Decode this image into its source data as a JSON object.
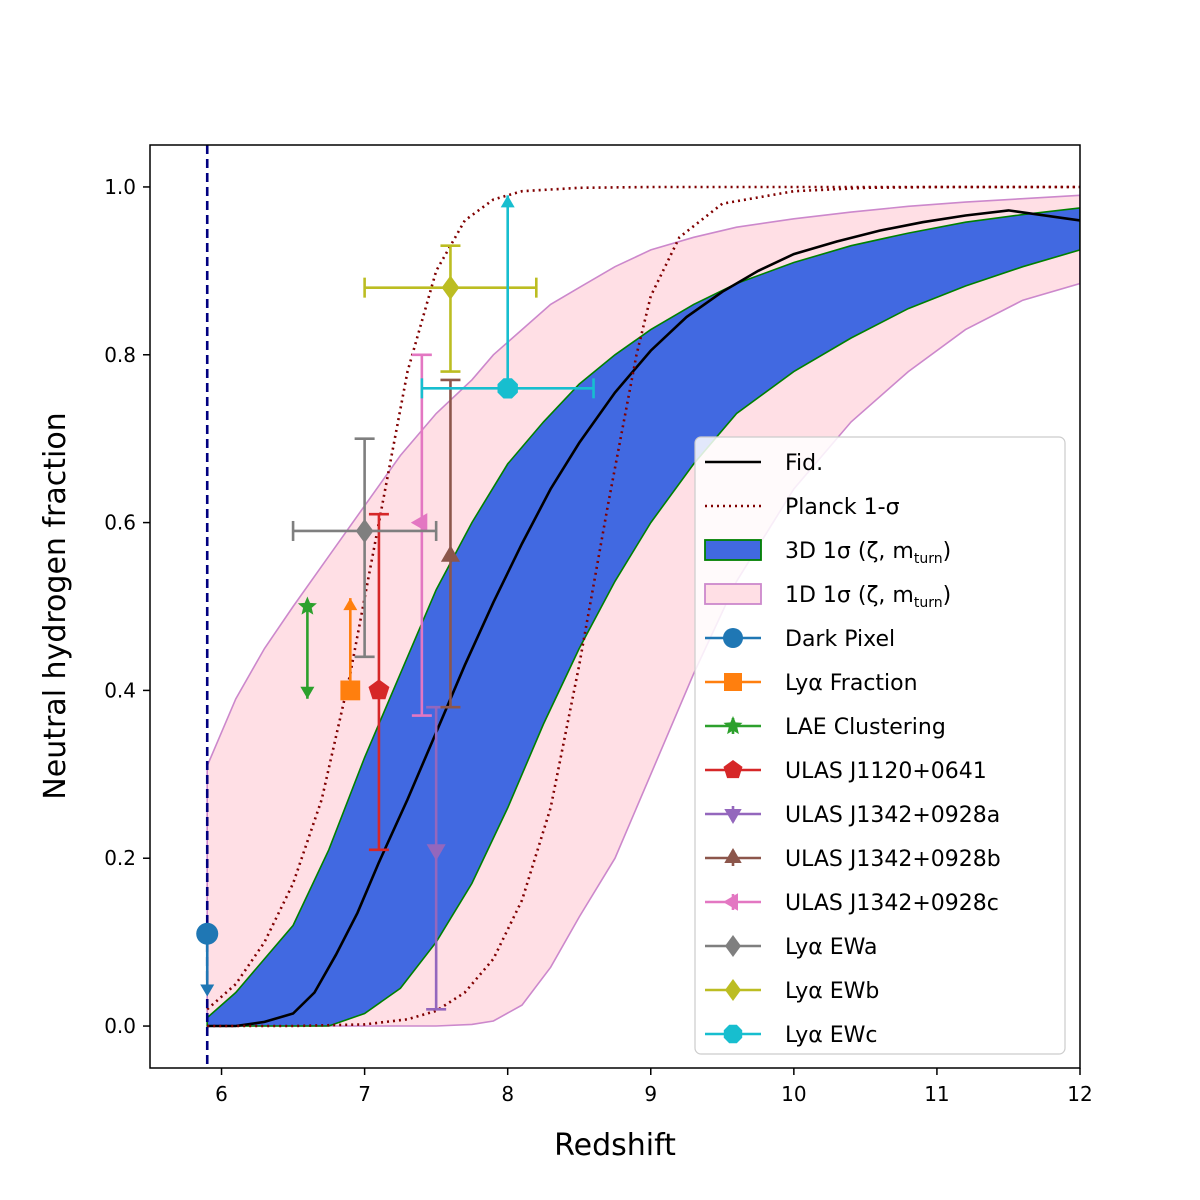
{
  "chart_data": {
    "type": "line",
    "xlabel": "Redshift",
    "ylabel": "Neutral hydrogen fraction",
    "xlim": [
      5.5,
      12
    ],
    "ylim": [
      -0.05,
      1.05
    ],
    "xticks": [
      {
        "value": 6,
        "label": "6"
      },
      {
        "value": 7,
        "label": "7"
      },
      {
        "value": 8,
        "label": "8"
      },
      {
        "value": 9,
        "label": "9"
      },
      {
        "value": 10,
        "label": "10"
      },
      {
        "value": 11,
        "label": "11"
      },
      {
        "value": 12,
        "label": "12"
      }
    ],
    "yticks": [
      {
        "value": 0.0,
        "label": "0.0"
      },
      {
        "value": 0.2,
        "label": "0.2"
      },
      {
        "value": 0.4,
        "label": "0.4"
      },
      {
        "value": 0.6,
        "label": "0.6"
      },
      {
        "value": 0.8,
        "label": "0.8"
      },
      {
        "value": 1.0,
        "label": "1.0"
      }
    ],
    "grid": false,
    "vline": {
      "x": 5.9,
      "color": "#000080",
      "style": "dashed"
    },
    "fiducial": {
      "name": "Fid.",
      "color": "#000000",
      "x": [
        5.9,
        6.1,
        6.3,
        6.5,
        6.65,
        6.8,
        6.95,
        7.1,
        7.3,
        7.5,
        7.7,
        7.9,
        8.1,
        8.3,
        8.5,
        8.75,
        9.0,
        9.25,
        9.5,
        9.75,
        10.0,
        10.3,
        10.6,
        10.9,
        11.2,
        11.5,
        12.0
      ],
      "y": [
        0.0,
        0.0,
        0.005,
        0.015,
        0.04,
        0.085,
        0.135,
        0.195,
        0.27,
        0.35,
        0.43,
        0.505,
        0.575,
        0.64,
        0.695,
        0.755,
        0.805,
        0.845,
        0.875,
        0.9,
        0.92,
        0.935,
        0.948,
        0.958,
        0.966,
        0.972,
        0.96
      ]
    },
    "planck": {
      "name": "Planck 1-σ",
      "color": "#800000",
      "lower": {
        "x": [
          5.9,
          6.5,
          7.0,
          7.3,
          7.5,
          7.7,
          7.9,
          8.1,
          8.3,
          8.5,
          8.7,
          8.9,
          9.0,
          9.2,
          9.5,
          10.0,
          10.5,
          11.0,
          12.0
        ],
        "y": [
          0.0,
          0.0,
          0.002,
          0.008,
          0.018,
          0.04,
          0.08,
          0.15,
          0.26,
          0.43,
          0.62,
          0.8,
          0.87,
          0.94,
          0.98,
          0.995,
          0.999,
          1.0,
          1.0
        ]
      },
      "upper": {
        "x": [
          5.9,
          6.1,
          6.3,
          6.5,
          6.7,
          6.9,
          7.1,
          7.3,
          7.5,
          7.7,
          7.9,
          8.1,
          8.5,
          9.0,
          10.0,
          12.0
        ],
        "y": [
          0.02,
          0.05,
          0.1,
          0.17,
          0.27,
          0.42,
          0.6,
          0.78,
          0.9,
          0.96,
          0.985,
          0.995,
          0.999,
          1.0,
          1.0,
          1.0
        ]
      }
    },
    "band_3d": {
      "name": "3D 1σ (ζ, m_turn)",
      "fill": "#4169e1",
      "edge": "#008000",
      "x": [
        5.9,
        6.1,
        6.3,
        6.5,
        6.75,
        7.0,
        7.25,
        7.5,
        7.75,
        8.0,
        8.25,
        8.5,
        8.75,
        9.0,
        9.3,
        9.6,
        10.0,
        10.4,
        10.8,
        11.2,
        11.6,
        12.0
      ],
      "upper": [
        0.01,
        0.04,
        0.08,
        0.12,
        0.21,
        0.32,
        0.42,
        0.52,
        0.6,
        0.67,
        0.72,
        0.765,
        0.8,
        0.83,
        0.86,
        0.885,
        0.91,
        0.93,
        0.945,
        0.958,
        0.967,
        0.975
      ],
      "lower": [
        0.0,
        0.0,
        0.0,
        0.0,
        0.0,
        0.015,
        0.045,
        0.1,
        0.17,
        0.26,
        0.36,
        0.45,
        0.53,
        0.6,
        0.67,
        0.73,
        0.78,
        0.82,
        0.855,
        0.882,
        0.905,
        0.925
      ]
    },
    "band_1d": {
      "name": "1D 1σ (ζ, m_turn)",
      "fill": "#ffdfe5",
      "edge": "#cc88cc",
      "x": [
        5.9,
        6.1,
        6.3,
        6.5,
        6.75,
        7.0,
        7.25,
        7.5,
        7.75,
        7.9,
        8.1,
        8.3,
        8.5,
        8.75,
        9.0,
        9.3,
        9.6,
        10.0,
        10.4,
        10.8,
        11.2,
        11.6,
        12.0
      ],
      "upper": [
        0.31,
        0.39,
        0.45,
        0.5,
        0.56,
        0.62,
        0.68,
        0.73,
        0.77,
        0.8,
        0.83,
        0.86,
        0.88,
        0.905,
        0.925,
        0.94,
        0.952,
        0.962,
        0.97,
        0.977,
        0.982,
        0.986,
        0.99
      ],
      "lower": [
        0.0,
        0.0,
        0.0,
        0.0,
        0.0,
        0.0,
        0.0,
        0.0,
        0.002,
        0.006,
        0.025,
        0.07,
        0.13,
        0.2,
        0.3,
        0.42,
        0.53,
        0.64,
        0.72,
        0.78,
        0.83,
        0.865,
        0.885
      ]
    },
    "points": [
      {
        "name": "Dark Pixel",
        "color": "#1f77b4",
        "marker": "circle",
        "x": 5.9,
        "y": 0.11,
        "upper_limit": 0.04
      },
      {
        "name": "Lyα Fraction",
        "color": "#ff7f0e",
        "marker": "square",
        "x": 6.9,
        "y": 0.4,
        "lower_limit_to": 0.51
      },
      {
        "name": "LAE Clustering",
        "color": "#2ca02c",
        "marker": "star",
        "x": 6.6,
        "y": 0.5,
        "range_to": 0.39
      },
      {
        "name": "ULAS J1120+0641",
        "color": "#d62728",
        "marker": "pentagon",
        "x": 7.1,
        "y": 0.4,
        "yerr": [
          0.21,
          0.61
        ]
      },
      {
        "name": "ULAS J1342+0928a",
        "color": "#9467bd",
        "marker": "triangle-down",
        "x": 7.5,
        "y": 0.21,
        "yerr": [
          0.02,
          0.38
        ]
      },
      {
        "name": "ULAS J1342+0928b",
        "color": "#8c564b",
        "marker": "triangle-up",
        "x": 7.6,
        "y": 0.56,
        "yerr": [
          0.38,
          0.77
        ]
      },
      {
        "name": "ULAS J1342+0928c",
        "color": "#e377c2",
        "marker": "triangle-left",
        "x": 7.4,
        "y": 0.6,
        "yerr": [
          0.37,
          0.8
        ]
      },
      {
        "name": "Lyα EWa",
        "color": "#7f7f7f",
        "marker": "diamond",
        "x": 7.0,
        "y": 0.59,
        "yerr": [
          0.44,
          0.7
        ],
        "xerr": [
          6.5,
          7.5
        ]
      },
      {
        "name": "Lyα EWb",
        "color": "#bcbd22",
        "marker": "diamond",
        "x": 7.6,
        "y": 0.88,
        "yerr": [
          0.78,
          0.93
        ],
        "xerr": [
          7.0,
          8.2
        ]
      },
      {
        "name": "Lyα EWc",
        "color": "#17becf",
        "marker": "octagon",
        "x": 8.0,
        "y": 0.76,
        "xerr": [
          7.4,
          8.6
        ],
        "lower_limit_to": 0.99
      }
    ]
  },
  "legend": {
    "placement": "lower-right",
    "entries": [
      {
        "label": "Fid.",
        "kind": "line",
        "color": "#000000"
      },
      {
        "label": "Planck 1-σ",
        "kind": "dotted",
        "color": "#800000"
      },
      {
        "label": "3D 1σ (ζ, m",
        "sub": "turn",
        "tail": ")",
        "kind": "patch",
        "fill": "#4169e1",
        "edge": "#008000"
      },
      {
        "label": "1D 1σ (ζ, m",
        "sub": "turn",
        "tail": ")",
        "kind": "patch",
        "fill": "#ffdfe5",
        "edge": "#cc88cc"
      },
      {
        "label": "Dark Pixel",
        "kind": "marker",
        "color": "#1f77b4",
        "marker": "circle"
      },
      {
        "label": "Lyα Fraction",
        "kind": "marker",
        "color": "#ff7f0e",
        "marker": "square"
      },
      {
        "label": "LAE Clustering",
        "kind": "marker",
        "color": "#2ca02c",
        "marker": "star"
      },
      {
        "label": "ULAS J1120+0641",
        "kind": "marker",
        "color": "#d62728",
        "marker": "pentagon"
      },
      {
        "label": "ULAS J1342+0928a",
        "kind": "marker",
        "color": "#9467bd",
        "marker": "triangle-down"
      },
      {
        "label": "ULAS J1342+0928b",
        "kind": "marker",
        "color": "#8c564b",
        "marker": "triangle-up"
      },
      {
        "label": "ULAS J1342+0928c",
        "kind": "marker",
        "color": "#e377c2",
        "marker": "triangle-left"
      },
      {
        "label": "Lyα EWa",
        "kind": "marker",
        "color": "#7f7f7f",
        "marker": "diamond"
      },
      {
        "label": "Lyα EWb",
        "kind": "marker",
        "color": "#bcbd22",
        "marker": "diamond"
      },
      {
        "label": "Lyα EWc",
        "kind": "marker",
        "color": "#17becf",
        "marker": "octagon"
      }
    ]
  }
}
